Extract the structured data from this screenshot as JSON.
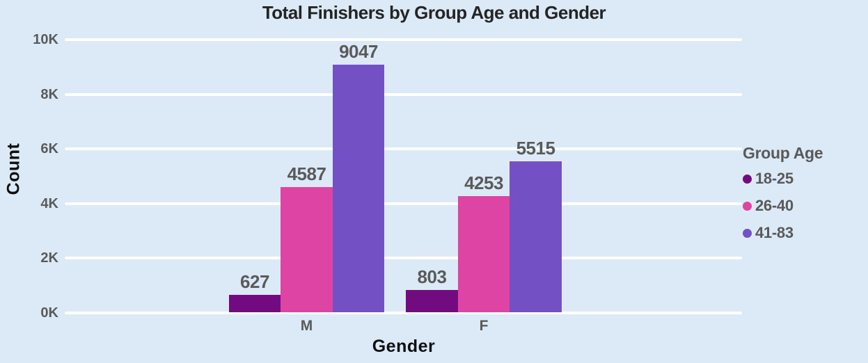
{
  "colors": {
    "background": "#DCEAF7",
    "gridline": "#FFFFFF",
    "tick_label": "#5A5A5A",
    "value_label": "#5A5A5A",
    "title_text": "#242424",
    "axis_title_text": "#0F0F0F",
    "legend_text": "#595959"
  },
  "chart_data": {
    "type": "bar",
    "title": "Total Finishers by Group Age and Gender",
    "xlabel": "Gender",
    "ylabel": "Count",
    "categories": [
      "M",
      "F"
    ],
    "series": [
      {
        "name": "18-25",
        "color": "#730B80",
        "values": [
          627,
          803
        ]
      },
      {
        "name": "26-40",
        "color": "#DE44A3",
        "values": [
          4587,
          4253
        ]
      },
      {
        "name": "41-83",
        "color": "#7450C5",
        "values": [
          9047,
          5515
        ]
      }
    ],
    "legend_title": "Group Age",
    "legend_position": "right",
    "y_ticks": [
      "0K",
      "2K",
      "4K",
      "6K",
      "8K",
      "10K"
    ],
    "y_tick_values": [
      0,
      2000,
      4000,
      6000,
      8000,
      10000
    ],
    "ylim": [
      0,
      10000
    ],
    "grid": true,
    "data_labels": true
  }
}
